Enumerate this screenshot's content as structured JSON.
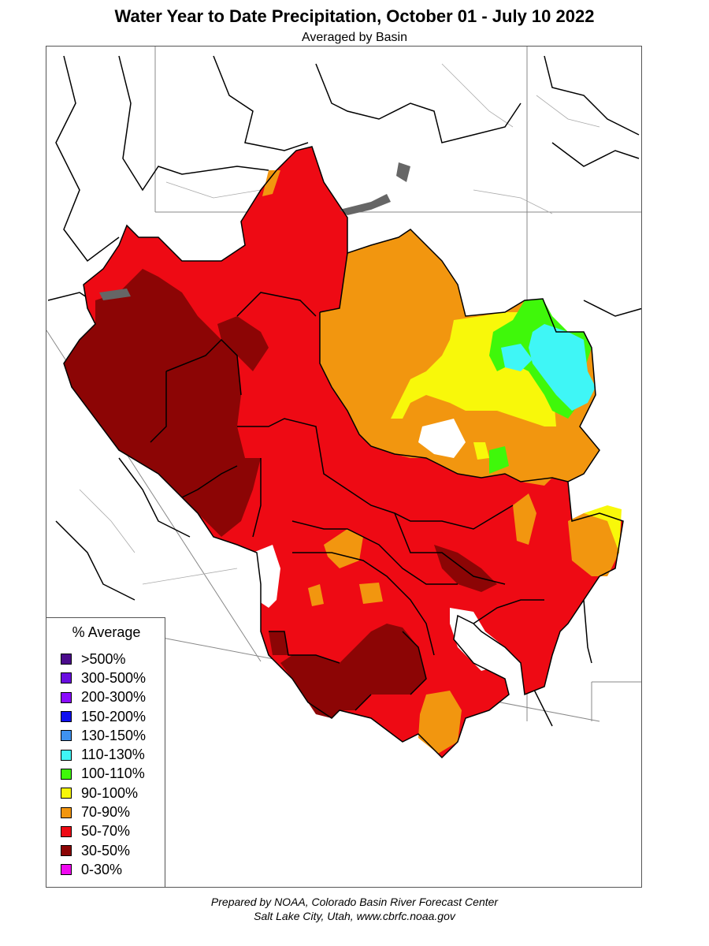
{
  "title": "Water Year to Date Precipitation, October 01  - July 10 2022",
  "subtitle": "Averaged by Basin",
  "legend": {
    "title": "% Average",
    "items": [
      {
        "label": ">500%",
        "color": "#4b0c8c"
      },
      {
        "label": "300-500%",
        "color": "#6a0ee0"
      },
      {
        "label": "200-300%",
        "color": "#8a0cff"
      },
      {
        "label": "150-200%",
        "color": "#1010f0"
      },
      {
        "label": "130-150%",
        "color": "#3f92f0"
      },
      {
        "label": "110-130%",
        "color": "#3ff6f6"
      },
      {
        "label": "100-110%",
        "color": "#3ff80a"
      },
      {
        "label": "90-100%",
        "color": "#f8f80a"
      },
      {
        "label": "70-90%",
        "color": "#f2960f"
      },
      {
        "label": "50-70%",
        "color": "#ee0a14"
      },
      {
        "label": "30-50%",
        "color": "#8c0505"
      },
      {
        "label": "0-30%",
        "color": "#f00af0"
      }
    ]
  },
  "credits": {
    "line1": "Prepared by NOAA, Colorado Basin River Forecast Center",
    "line2": "Salt Lake City, Utah, www.cbrfc.noaa.gov"
  }
}
